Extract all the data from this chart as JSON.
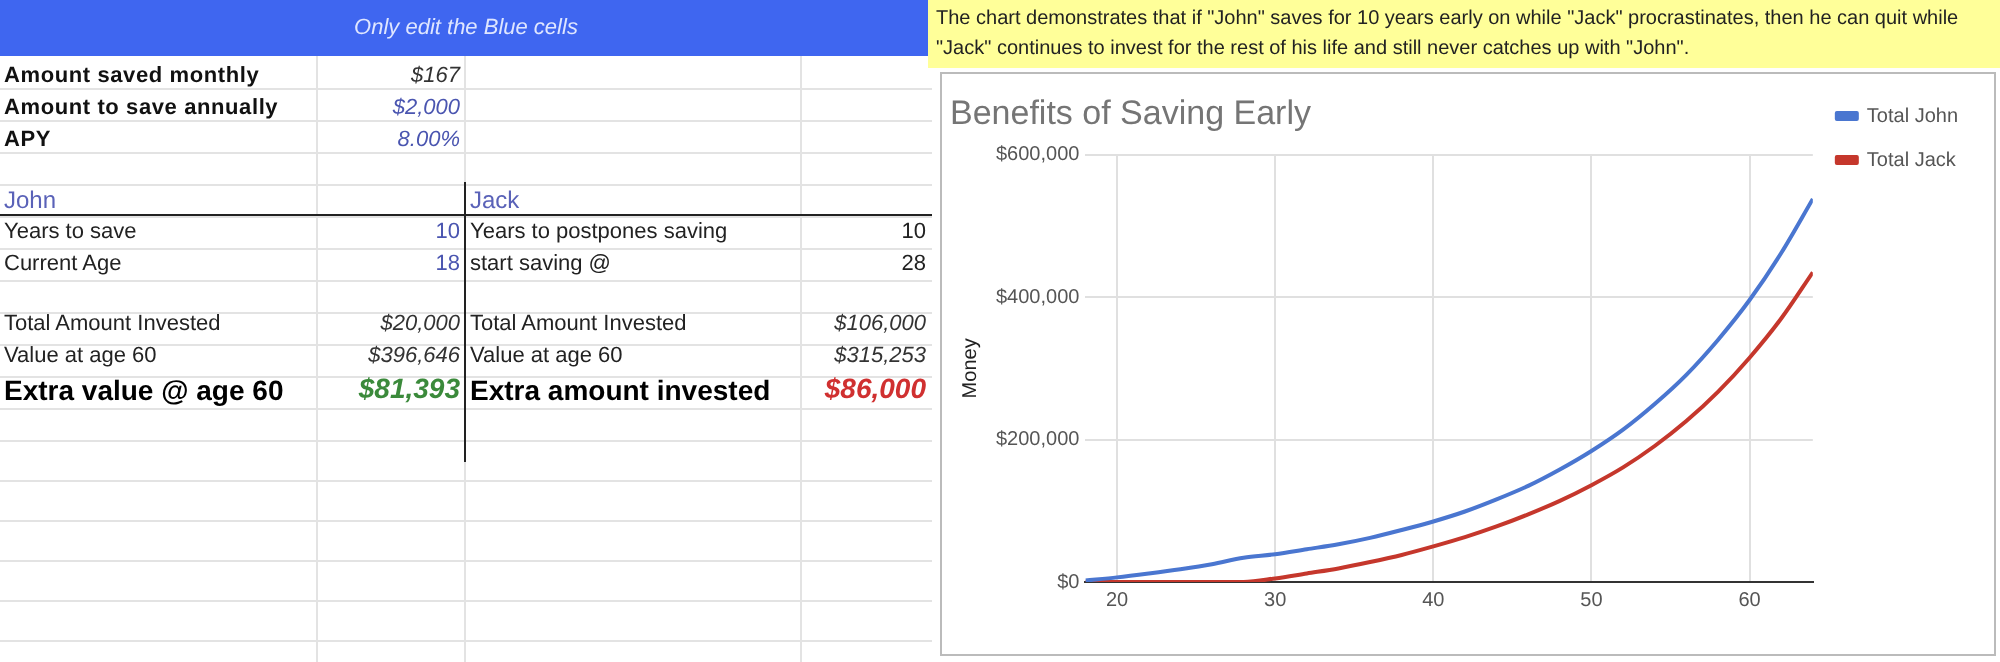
{
  "chart_data": [
    {
      "type": "other",
      "title": "Only edit the Blue cells",
      "annotations": [
        "Amount saved monthly",
        "$167",
        "Amount to save annually",
        "$2,000",
        "APY",
        "8.00%",
        "John",
        "Jack",
        "Years to save",
        "10",
        "Years to postpones saving",
        "10",
        "Current Age",
        "18",
        "start saving @",
        "28",
        "Total Amount Invested",
        "$20,000",
        "Total Amount Invested",
        "$106,000",
        "Value at age 60",
        "$396,646",
        "Value at age 60",
        "$315,253",
        "Extra value @ age 60",
        "$81,393",
        "Extra amount invested",
        "$86,000"
      ]
    },
    {
      "type": "line",
      "title": "Benefits of Saving Early",
      "ylabel": "Money",
      "annotations": [
        "The chart demonstrates that if \"John\" saves for 10 years early on while \"Jack\" procrastinates, then he can quit while \"Jack\" continues to invest for the rest of his life and still never catches up with \"John\"."
      ],
      "x": [
        18,
        20,
        22,
        24,
        26,
        28,
        30,
        32,
        34,
        36,
        38,
        40,
        42,
        44,
        46,
        48,
        50,
        52,
        54,
        56,
        58,
        60,
        62,
        64
      ],
      "series": [
        {
          "name": "Total John",
          "color": "#4a76d0",
          "values": [
            2000,
            6500,
            12000,
            18000,
            25000,
            34000,
            39000,
            46000,
            53000,
            62000,
            73000,
            85000,
            99000,
            116000,
            135000,
            158000,
            184000,
            214000,
            250000,
            291000,
            340000,
            396000,
            462000,
            538000
          ]
        },
        {
          "name": "Total Jack",
          "color": "#c5372c",
          "values": [
            0,
            0,
            0,
            0,
            0,
            0,
            5000,
            12000,
            19000,
            28000,
            38000,
            50000,
            63000,
            78000,
            95000,
            114000,
            136000,
            161000,
            191000,
            226000,
            267000,
            315000,
            370000,
            435000
          ]
        }
      ],
      "xlim": [
        18,
        64
      ],
      "xticks": [
        20,
        30,
        40,
        50,
        60
      ],
      "ylim": [
        0,
        600000
      ],
      "yticks": [
        {
          "value": 0,
          "label": "$0"
        },
        {
          "value": 200000,
          "label": "$200,000"
        },
        {
          "value": 400000,
          "label": "$400,000"
        },
        {
          "value": 600000,
          "label": "$600,000"
        }
      ],
      "grid": true,
      "legend": "top right",
      "marker": "none",
      "line_style": "solid"
    }
  ]
}
